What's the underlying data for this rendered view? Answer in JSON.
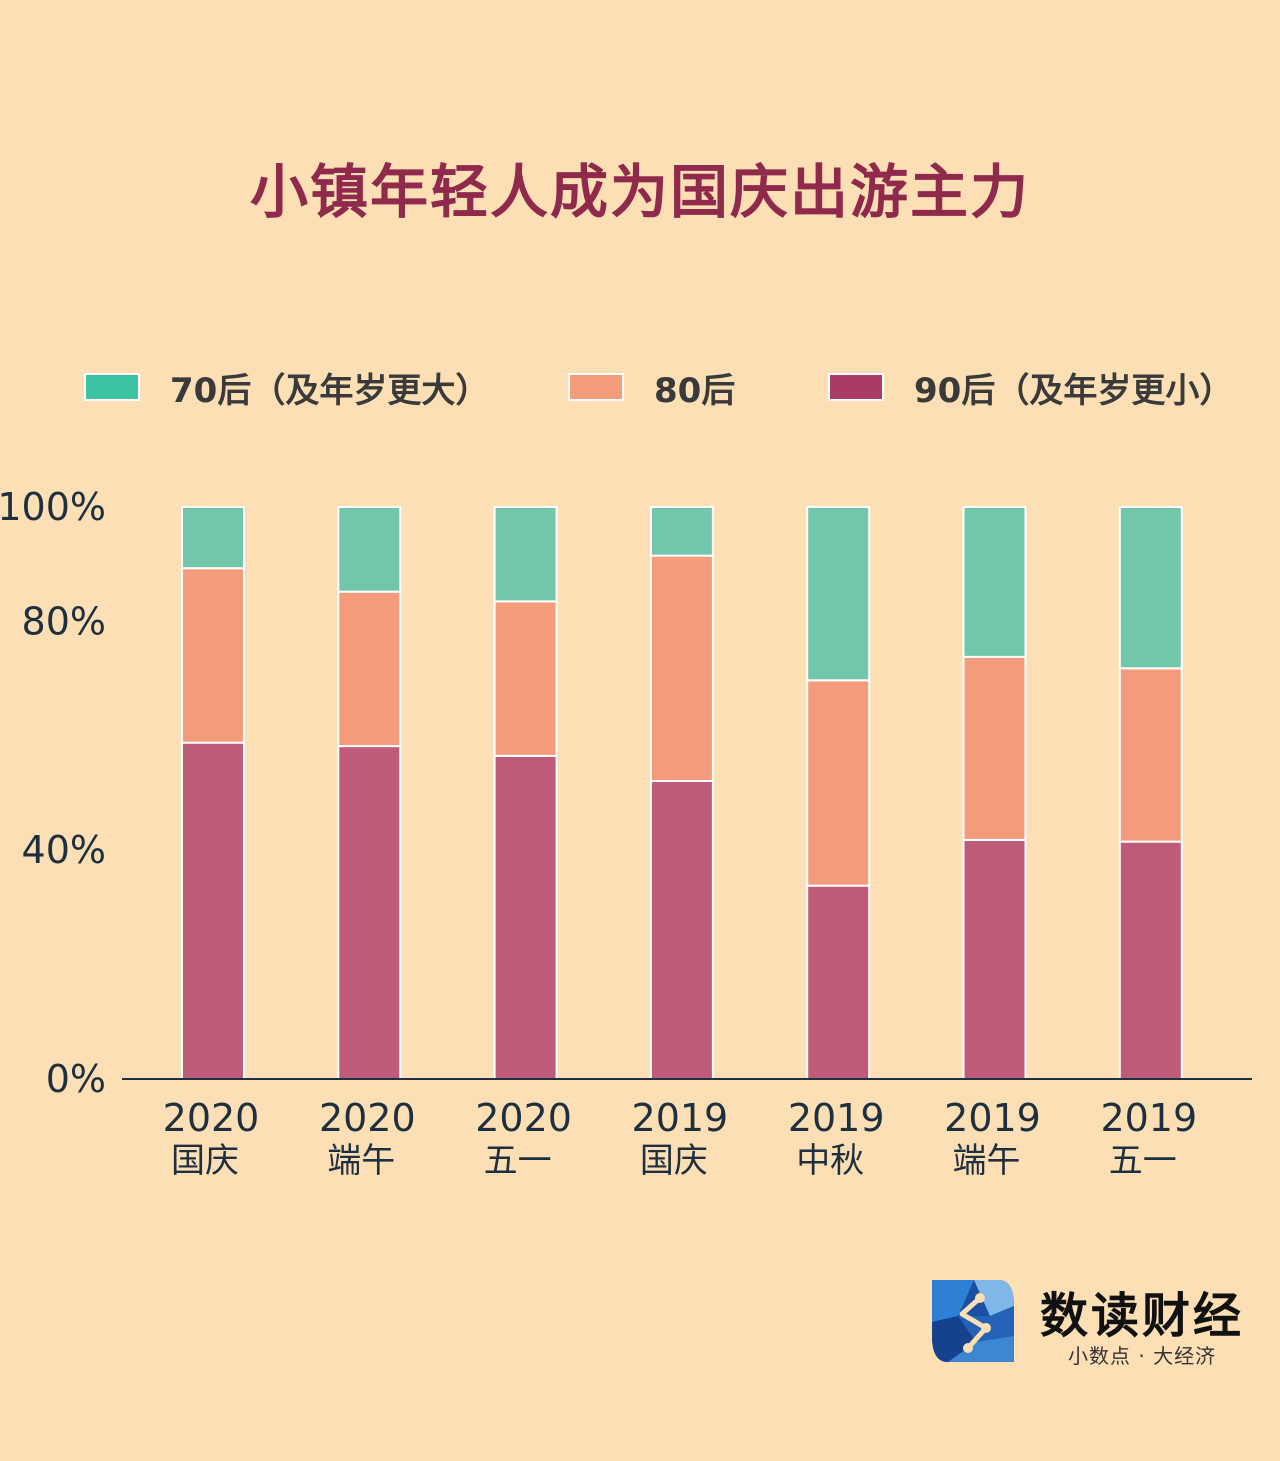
{
  "chart_data": {
    "type": "bar",
    "stacked": true,
    "title": "小镇年轻人成为国庆出游主力",
    "categories": [
      [
        "2020",
        "国庆"
      ],
      [
        "2020",
        "端午"
      ],
      [
        "2020",
        "五一"
      ],
      [
        "2019",
        "国庆"
      ],
      [
        "2019",
        "中秋"
      ],
      [
        "2019",
        "端午"
      ],
      [
        "2019",
        "五一"
      ]
    ],
    "series": [
      {
        "name": "90后（及年岁更小）",
        "color": "#bd5b78",
        "values": [
          58.8,
          58.2,
          56.5,
          52.1,
          33.8,
          41.8,
          41.5
        ]
      },
      {
        "name": "80后",
        "color": "#f39b7b",
        "values": [
          30.5,
          27.0,
          27.0,
          39.4,
          35.9,
          32.0,
          30.3
        ]
      },
      {
        "name": "70后（及年岁更大）",
        "color": "#72c7ab",
        "values": [
          10.7,
          14.8,
          16.5,
          8.5,
          30.3,
          26.2,
          28.2
        ]
      }
    ],
    "yticks": [
      "0%",
      "40%",
      "80%",
      "100%"
    ],
    "ytick_values": [
      0,
      40,
      80,
      100
    ],
    "ylim": [
      0,
      100
    ],
    "legend_position": "top",
    "grid": false
  },
  "legend": [
    {
      "label": "70后（及年岁更大）",
      "color": "#3ec3a3"
    },
    {
      "label": "80后",
      "color": "#f39b7b"
    },
    {
      "label": "90后（及年岁更小）",
      "color": "#a93c64"
    }
  ],
  "logo": {
    "name": "数读财经",
    "slogan": "小数点 · 大经济",
    "icon": "shuduo-logo-icon",
    "colors": [
      "#1a4fa3",
      "#2e7fd6",
      "#7fb7e8"
    ]
  }
}
